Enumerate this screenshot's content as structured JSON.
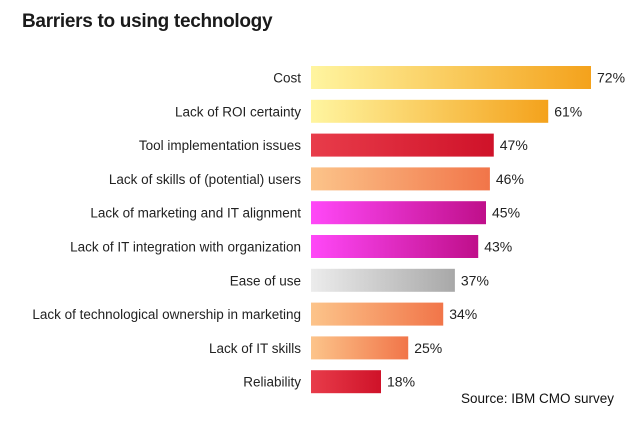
{
  "chart_data": {
    "type": "bar",
    "orientation": "horizontal",
    "title": "Barriers to using technology",
    "categories": [
      "Cost",
      "Lack of ROI certainty",
      "Tool implementation issues",
      "Lack of skills of (potential) users",
      "Lack of marketing and IT alignment",
      "Lack of IT integration with organization",
      "Ease of use",
      "Lack of technological ownership in marketing",
      "Lack of IT skills",
      "Reliability"
    ],
    "values": [
      72,
      61,
      47,
      46,
      45,
      43,
      37,
      34,
      25,
      18
    ],
    "value_labels": [
      "72%",
      "61%",
      "47%",
      "46%",
      "45%",
      "43%",
      "37%",
      "34%",
      "25%",
      "18%"
    ],
    "unit": "%",
    "bar_colors": [
      [
        "#fff5a0",
        "#f4a21c"
      ],
      [
        "#fff5a0",
        "#f4a21c"
      ],
      [
        "#e83c4a",
        "#cf1229"
      ],
      [
        "#fcc48a",
        "#f17549"
      ],
      [
        "#ff48f8",
        "#bf0f8a"
      ],
      [
        "#ff48f8",
        "#bf0f8a"
      ],
      [
        "#ececec",
        "#a8a8a8"
      ],
      [
        "#fcc48a",
        "#f17549"
      ],
      [
        "#fcc48a",
        "#f17549"
      ],
      [
        "#e83c4a",
        "#cf1229"
      ]
    ],
    "xlim": [
      0,
      72
    ],
    "grid": false,
    "legend": "none"
  },
  "source": "Source: IBM CMO survey"
}
